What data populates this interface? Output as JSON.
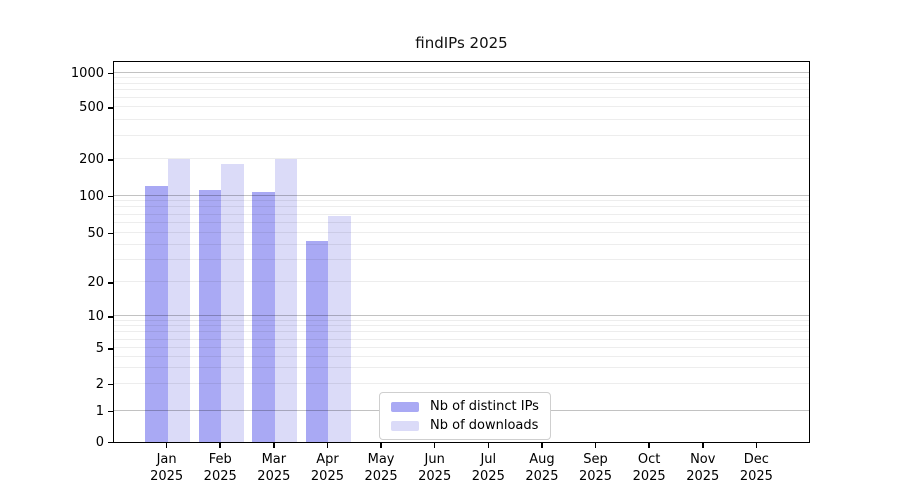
{
  "chart_data": {
    "type": "bar",
    "title": "findIPs 2025",
    "categories": [
      "Jan",
      "Feb",
      "Mar",
      "Apr",
      "May",
      "Jun",
      "Jul",
      "Aug",
      "Sep",
      "Oct",
      "Nov",
      "Dec"
    ],
    "category_year": "2025",
    "series": [
      {
        "name": "Nb of distinct IPs",
        "color": "#a9a9f4",
        "values": [
          120,
          111,
          107,
          43,
          null,
          null,
          null,
          null,
          null,
          null,
          null,
          null
        ]
      },
      {
        "name": "Nb of downloads",
        "color": "#dbdbf8",
        "values": [
          200,
          183,
          200,
          68,
          null,
          null,
          null,
          null,
          null,
          null,
          null,
          null
        ]
      }
    ],
    "y_ticks": [
      0,
      1,
      2,
      5,
      10,
      20,
      50,
      100,
      200,
      500,
      1000
    ],
    "y_scale": "symlog",
    "ylim": [
      0,
      1260
    ],
    "xlabel": "",
    "ylabel": "",
    "grid": "horizontal log gridlines, majors at powers of ten",
    "legend_position": "lower center"
  }
}
